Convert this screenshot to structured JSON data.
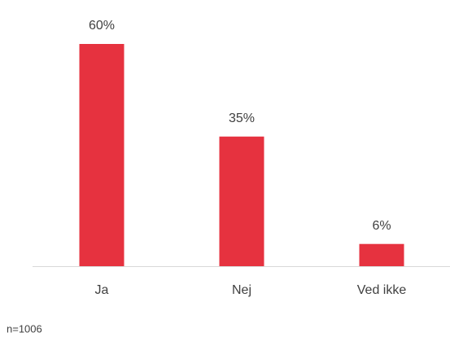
{
  "chart_data": {
    "type": "bar",
    "categories": [
      "Ja",
      "Nej",
      "Ved ikke"
    ],
    "values": [
      60,
      35,
      6
    ],
    "value_labels": [
      "60%",
      "35%",
      "6%"
    ],
    "color": "#e6323f",
    "annotation": "n=1006"
  }
}
